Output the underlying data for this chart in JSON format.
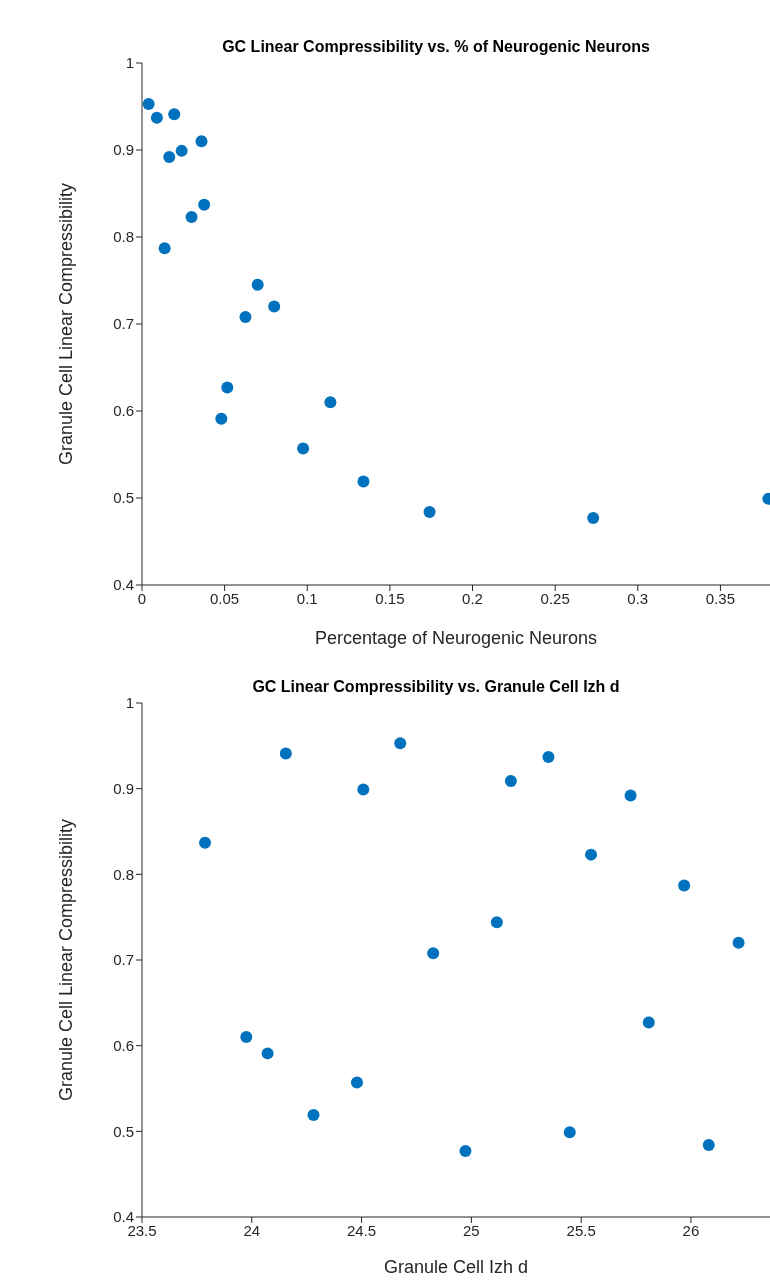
{
  "chart_data": [
    {
      "type": "scatter",
      "title": "GC Linear Compressibility vs. % of Neurogenic Neurons",
      "xlabel": "Percentage of Neurogenic Neurons",
      "ylabel": "Granule Cell Linear Compressibility",
      "marker": "circle",
      "xlim": [
        0,
        0.38
      ],
      "ylim": [
        0.4,
        1
      ],
      "xticks": [
        0,
        0.05,
        0.1,
        0.15,
        0.2,
        0.25,
        0.3,
        0.35
      ],
      "yticks": [
        0.4,
        0.5,
        0.6,
        0.7,
        0.8,
        0.9,
        1
      ],
      "x": [
        0.004,
        0.009,
        0.0195,
        0.0165,
        0.024,
        0.036,
        0.03,
        0.0376,
        0.0137,
        0.07,
        0.0626,
        0.08,
        0.0516,
        0.048,
        0.114,
        0.0975,
        0.134,
        0.174,
        0.273,
        0.379
      ],
      "series": [
        {
          "color": "#0072bd",
          "values": [
            0.953,
            0.937,
            0.941,
            0.892,
            0.899,
            0.91,
            0.823,
            0.837,
            0.787,
            0.745,
            0.708,
            0.72,
            0.627,
            0.591,
            0.61,
            0.557,
            0.519,
            0.484,
            0.477,
            0.499
          ]
        }
      ]
    },
    {
      "type": "scatter",
      "title": "GC Linear Compressibility vs. Granule Cell Izh d",
      "xlabel": "Granule Cell Izh d",
      "ylabel": "Granule Cell Linear Compressibility",
      "marker": "circle",
      "xlim": [
        23.5,
        26.36
      ],
      "ylim": [
        0.4,
        1
      ],
      "xticks": [
        23.5,
        24,
        24.5,
        25,
        25.5,
        26
      ],
      "yticks": [
        0.4,
        0.5,
        0.6,
        0.7,
        0.8,
        0.9,
        1
      ],
      "x": [
        23.787,
        23.975,
        24.072,
        24.155,
        24.281,
        24.479,
        24.508,
        24.676,
        24.826,
        24.973,
        25.116,
        25.18,
        25.351,
        25.448,
        25.545,
        25.725,
        25.808,
        25.969,
        26.081,
        26.217
      ],
      "series": [
        {
          "color": "#0072bd",
          "values": [
            0.837,
            0.61,
            0.591,
            0.941,
            0.519,
            0.557,
            0.899,
            0.953,
            0.708,
            0.477,
            0.744,
            0.909,
            0.937,
            0.499,
            0.823,
            0.892,
            0.627,
            0.787,
            0.484,
            0.72
          ]
        }
      ]
    }
  ]
}
